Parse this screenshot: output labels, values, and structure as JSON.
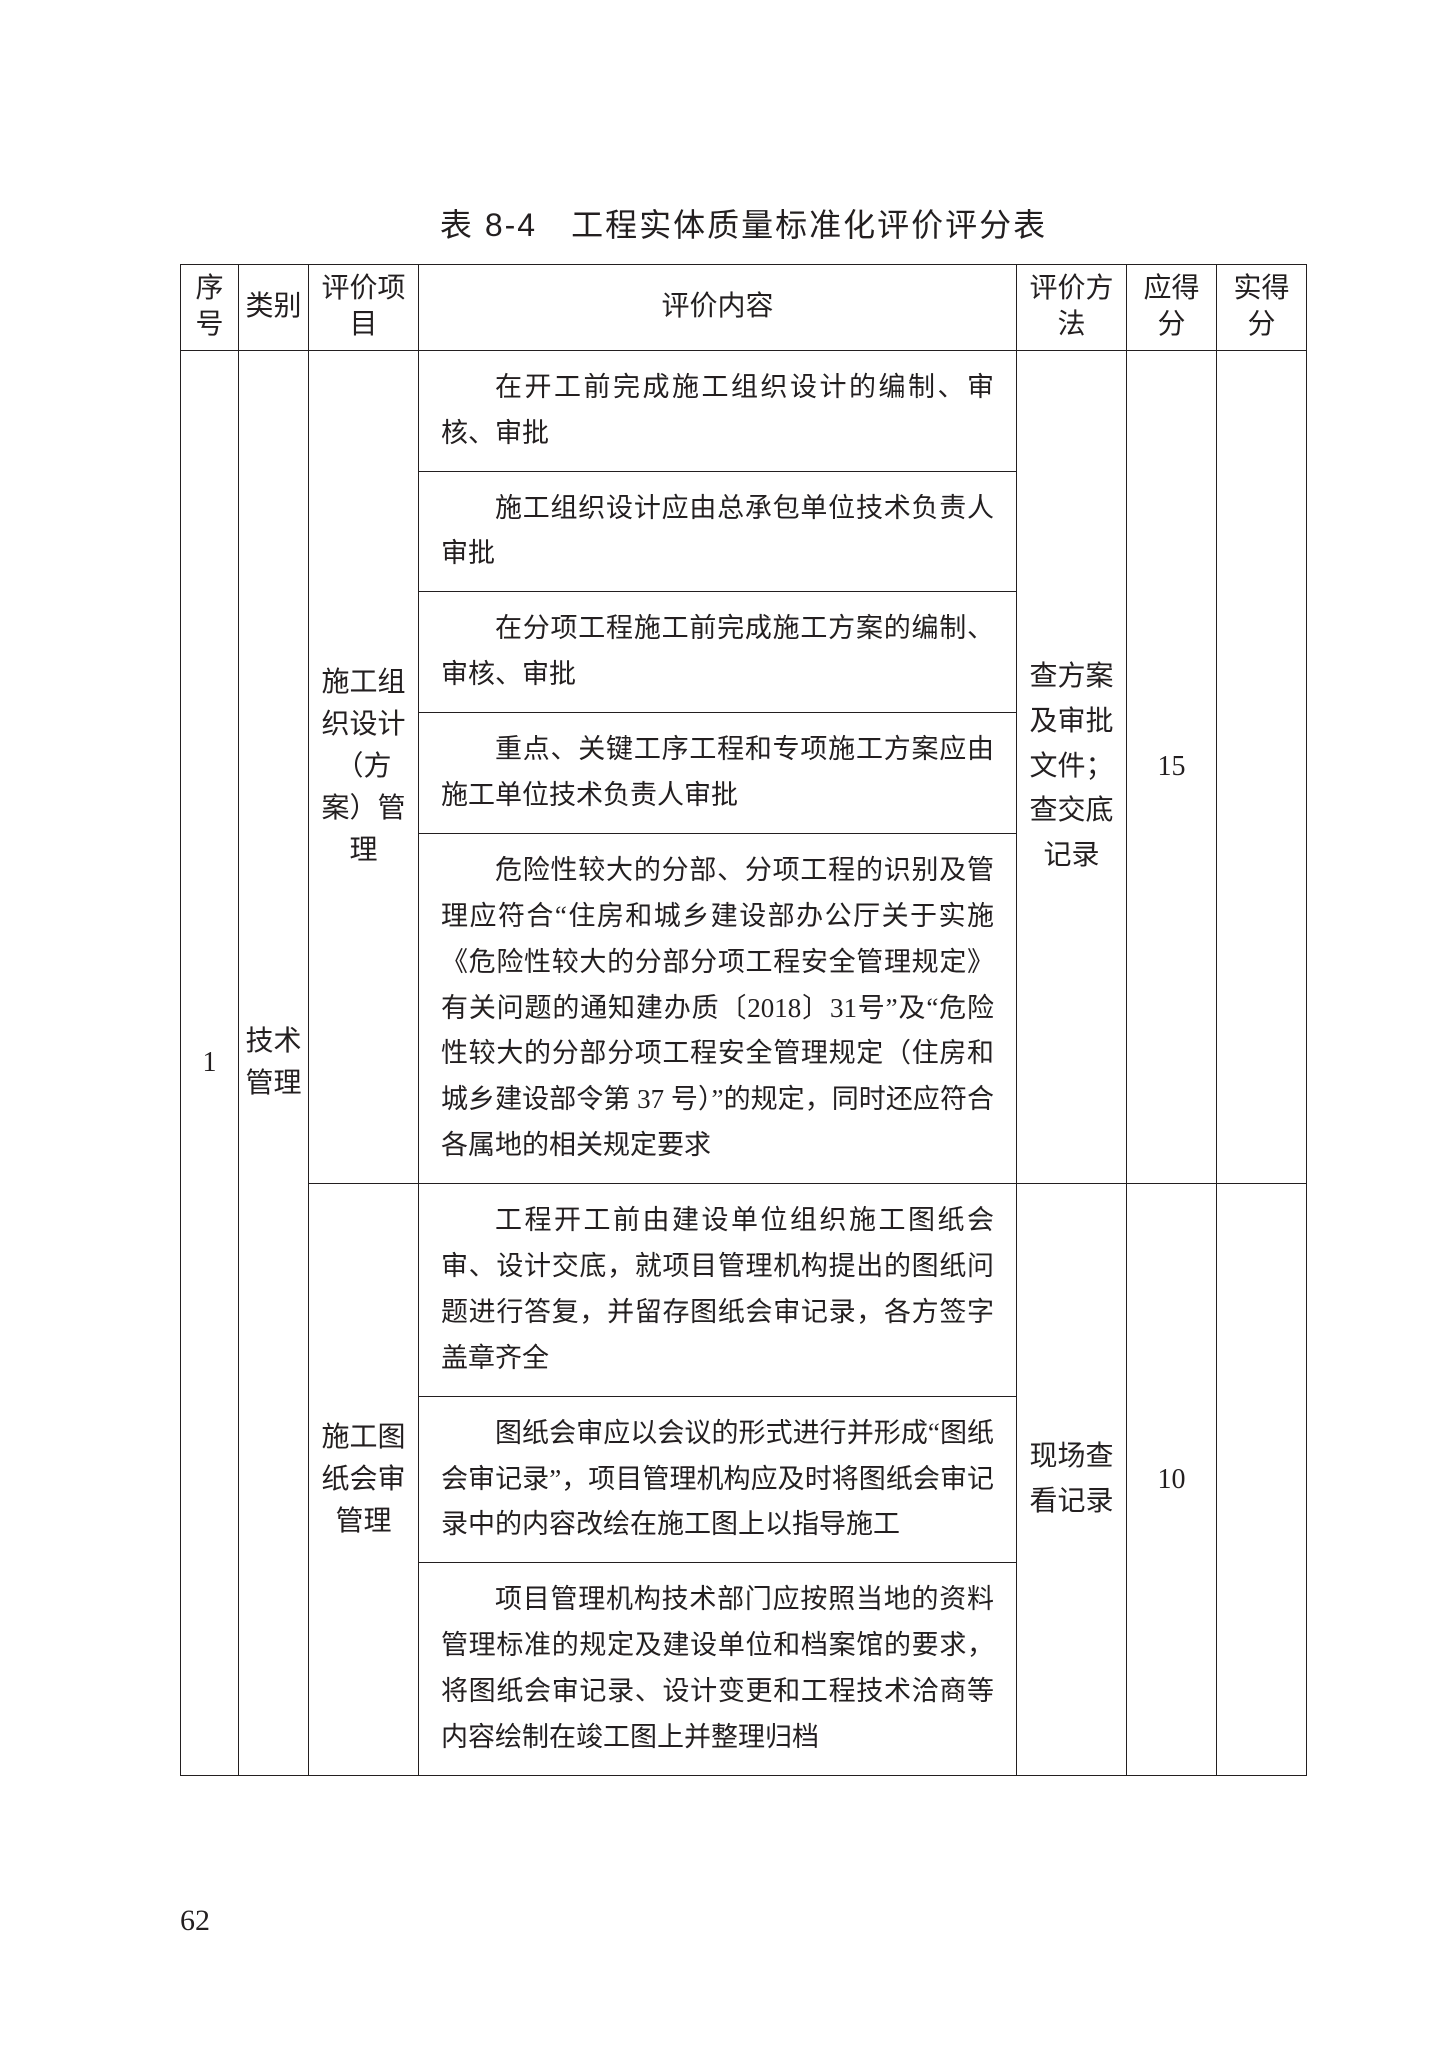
{
  "title": "表 8-4　工程实体质量标准化评价评分表",
  "header": {
    "seq": "序号",
    "category": "类别",
    "item": "评价项目",
    "content": "评价内容",
    "method": "评价方法",
    "should": "应得分",
    "actual": "实得分"
  },
  "seq": "1",
  "category": "技术管理",
  "groups": [
    {
      "item": "施工组织设计（方案）管理",
      "method": "查方案及审批文件；查交底记录",
      "should_score": "15",
      "actual_score": "",
      "contents": [
        "在开工前完成施工组织设计的编制、审核、审批",
        "施工组织设计应由总承包单位技术负责人审批",
        "在分项工程施工前完成施工方案的编制、审核、审批",
        "重点、关键工序工程和专项施工方案应由施工单位技术负责人审批",
        "危险性较大的分部、分项工程的识别及管理应符合“住房和城乡建设部办公厅关于实施《危险性较大的分部分项工程安全管理规定》有关问题的通知建办质〔2018〕31号”及“危险性较大的分部分项工程安全管理规定（住房和城乡建设部令第 37 号）”的规定，同时还应符合各属地的相关规定要求"
      ]
    },
    {
      "item": "施工图纸会审管理",
      "method": "现场查看记录",
      "should_score": "10",
      "actual_score": "",
      "contents": [
        "工程开工前由建设单位组织施工图纸会审、设计交底，就项目管理机构提出的图纸问题进行答复，并留存图纸会审记录，各方签字盖章齐全",
        "图纸会审应以会议的形式进行并形成“图纸会审记录”，项目管理机构应及时将图纸会审记录中的内容改绘在施工图上以指导施工",
        "项目管理机构技术部门应按照当地的资料管理标准的规定及建设单位和档案馆的要求，将图纸会审记录、设计变更和工程技术洽商等内容绘制在竣工图上并整理归档"
      ]
    }
  ],
  "page_number": "62",
  "colors": {
    "text": "#231f20",
    "border": "#231f20",
    "background": "#ffffff"
  },
  "fontsize": {
    "title": 32,
    "header": 28,
    "body": 27
  }
}
